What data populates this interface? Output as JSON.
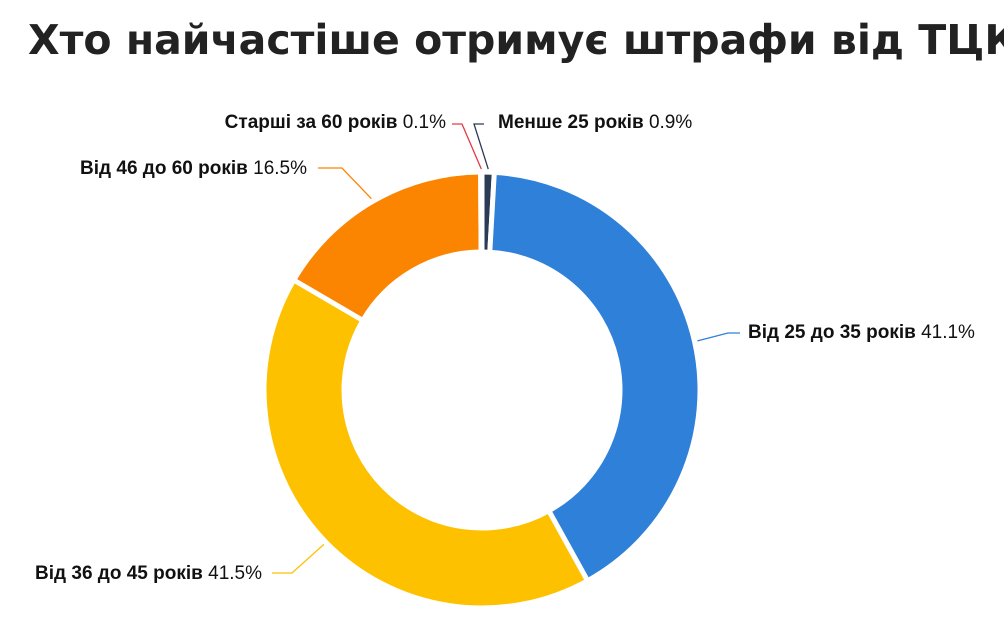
{
  "chart_data": {
    "type": "pie",
    "variant": "donut",
    "title": "Хто найчастіше отримує штрафи від ТЦК?",
    "legend": "none (labels with leader lines)",
    "slices": [
      {
        "label": "Менше 25 років",
        "value": 0.9,
        "value_label": "0.9%",
        "color": "#2b3a55"
      },
      {
        "label": "Від 25 до 35 років",
        "value": 41.1,
        "value_label": "41.1%",
        "color": "#2e80d8"
      },
      {
        "label": "Від 36 до 45 років",
        "value": 41.5,
        "value_label": "41.5%",
        "color": "#fdc100"
      },
      {
        "label": "Від 46 до 60 років",
        "value": 16.5,
        "value_label": "16.5%",
        "color": "#fb8500"
      },
      {
        "label": "Старші за 60 років",
        "value": 0.1,
        "value_label": "0.1%",
        "color": "#e63946"
      }
    ]
  }
}
